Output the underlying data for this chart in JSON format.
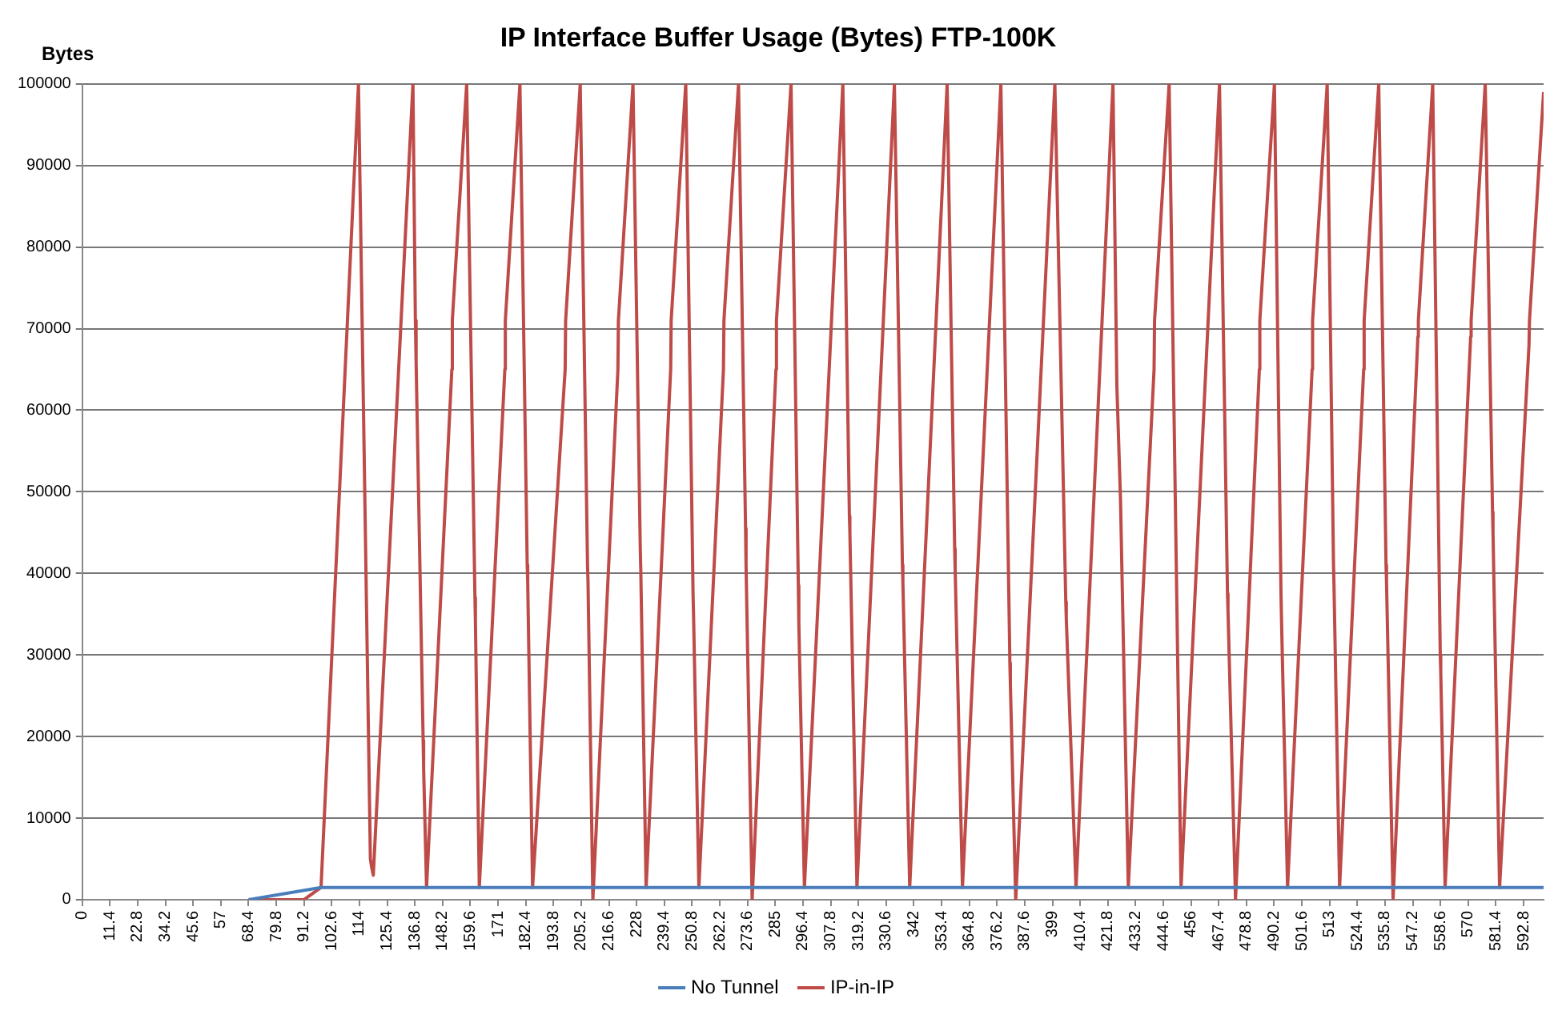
{
  "chart_data": {
    "type": "line",
    "title": "IP Interface Buffer Usage (Bytes) FTP-100K",
    "ylabel": "Bytes",
    "series": [
      {
        "name": "No Tunnel",
        "color": "#4a7ebb",
        "x": [
          68.4,
          98.2,
          601
        ],
        "values": [
          0,
          1500,
          1500
        ]
      },
      {
        "name": "IP-in-IP",
        "color": "#be4b48",
        "x": [
          68.4,
          91.2,
          98.2,
          113.6,
          118.5,
          119.0,
          119.7,
          136.0,
          137.0,
          137.3,
          140.2,
          140.4,
          141.6,
          152.0,
          152.2,
          158.1,
          161.5,
          161.7,
          163.3,
          173.8,
          174.0,
          180.0,
          183.0,
          183.2,
          185.2,
          198.6,
          198.8,
          204.8,
          207.8,
          208.0,
          210.0,
          220.3,
          220.5,
          226.5,
          229.5,
          229.7,
          231.9,
          242.0,
          242.2,
          248.2,
          251.2,
          251.4,
          253.6,
          263.7,
          263.9,
          269.9,
          272.8,
          273.0,
          275.5,
          285.3,
          285.5,
          291.5,
          294.5,
          294.7,
          297.0,
          312.8,
          315.5,
          315.7,
          318.6,
          334.0,
          337.3,
          337.5,
          340.3,
          355.7,
          358.8,
          359.0,
          362.0,
          377.8,
          381.5,
          381.7,
          383.9,
          400.0,
          404.5,
          404.7,
          408.7,
          423.9,
          425.5,
          427.0,
          430.2,
          440.8,
          441.0,
          447.0,
          451.9,
          467.7,
          471.0,
          471.2,
          474.3,
          484.1,
          484.3,
          490.3,
          493.0,
          493.2,
          495.7,
          505.8,
          506.0,
          512.0,
          514.6,
          514.8,
          517.1,
          527.0,
          527.2,
          533.2,
          536.2,
          536.4,
          539.1,
          549.3,
          549.5,
          555.4,
          558.5,
          558.7,
          560.5,
          571.0,
          571.2,
          577.0,
          580.0,
          580.2,
          582.9,
          595.0,
          595.2,
          601.0
        ],
        "values": [
          0,
          0,
          1500,
          100000,
          5000,
          4000,
          3000,
          100000,
          71000,
          66000,
          19500,
          16000,
          1500,
          65000,
          71000,
          100000,
          37000,
          34000,
          1500,
          65000,
          71000,
          100000,
          41000,
          39000,
          1500,
          65000,
          71000,
          100000,
          41000,
          39000,
          0,
          65000,
          71000,
          100000,
          43000,
          40500,
          1500,
          65000,
          71000,
          100000,
          37500,
          35000,
          1500,
          65000,
          71000,
          100000,
          45500,
          41000,
          0,
          65000,
          71000,
          100000,
          38500,
          34000,
          1500,
          100000,
          47000,
          45000,
          1500,
          100000,
          41000,
          39000,
          1500,
          100000,
          43000,
          40500,
          1500,
          100000,
          29000,
          26500,
          0,
          100000,
          36500,
          34500,
          1500,
          100000,
          63000,
          49000,
          1500,
          65000,
          71000,
          100000,
          1500,
          100000,
          37500,
          35500,
          0,
          65000,
          71000,
          100000,
          37500,
          34500,
          1500,
          65000,
          71000,
          100000,
          41000,
          38500,
          1500,
          65000,
          71000,
          100000,
          41000,
          39000,
          0,
          69000,
          71000,
          100000,
          30000,
          28000,
          1500,
          69000,
          71000,
          100000,
          47500,
          45000,
          1500,
          68000,
          71000,
          99000
        ]
      }
    ],
    "xlim": [
      0,
      601
    ],
    "xticks": [
      0,
      11.4,
      22.8,
      34.2,
      45.6,
      57,
      68.4,
      79.8,
      91.2,
      102.6,
      114,
      125.4,
      136.8,
      148.2,
      159.6,
      171,
      182.4,
      193.8,
      205.2,
      216.6,
      228,
      239.4,
      250.8,
      262.2,
      273.6,
      285,
      296.4,
      307.8,
      319.2,
      330.6,
      342,
      353.4,
      364.8,
      376.2,
      387.6,
      399,
      410.4,
      421.8,
      433.2,
      444.6,
      456,
      467.4,
      478.8,
      490.2,
      501.6,
      513,
      524.4,
      535.8,
      547.2,
      558.6,
      570,
      581.4,
      592.8
    ],
    "ylim": [
      0,
      100000
    ],
    "yticks": [
      0,
      10000,
      20000,
      30000,
      40000,
      50000,
      60000,
      70000,
      80000,
      90000,
      100000
    ],
    "grid": "y",
    "legend": "bottom",
    "marker": "none",
    "line_style": "solid"
  }
}
